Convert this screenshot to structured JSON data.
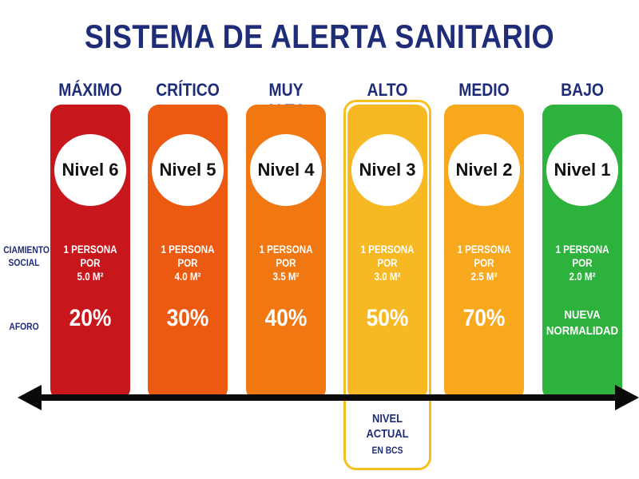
{
  "title": "SISTEMA DE ALERTA SANITARIO",
  "row_labels": {
    "distancing": "CIAMIENTO SOCIAL",
    "distancing_line1": "CIAMIENTO",
    "distancing_line2": "SOCIAL",
    "capacity": "AFORO"
  },
  "levels": [
    {
      "label": "MÁXIMO",
      "badge": "Nivel 6",
      "spacing_line1": "1 PERSONA POR",
      "spacing_line2": "5.0 M²",
      "capacity": "20%",
      "color": "#c8171c"
    },
    {
      "label": "CRÍTICO",
      "badge": "Nivel 5",
      "spacing_line1": "1 PERSONA POR",
      "spacing_line2": "4.0 M²",
      "capacity": "30%",
      "color": "#ec5a12"
    },
    {
      "label": "MUY ALTO",
      "badge": "Nivel 4",
      "spacing_line1": "1 PERSONA POR",
      "spacing_line2": "3.5 M²",
      "capacity": "40%",
      "color": "#f07712"
    },
    {
      "label": "ALTO",
      "badge": "Nivel 3",
      "spacing_line1": "1 PERSONA POR",
      "spacing_line2": "3.0 M²",
      "capacity": "50%",
      "color": "#f6b823"
    },
    {
      "label": "MEDIO",
      "badge": "Nivel 2",
      "spacing_line1": "1 PERSONA POR",
      "spacing_line2": "2.5 M²",
      "capacity": "70%",
      "color": "#f7a81d"
    },
    {
      "label": "BAJO",
      "badge": "Nivel 1",
      "spacing_line1": "1 PERSONA POR",
      "spacing_line2": "2.0 M²",
      "capacity_line1": "NUEVA",
      "capacity_line2": "NORMALIDAD",
      "color": "#2eb23e"
    }
  ],
  "current": {
    "line1": "NIVEL",
    "line2": "ACTUAL",
    "line3": "EN BCS",
    "highlight_color": "#f5bf22"
  },
  "colors": {
    "title": "#1f2c78",
    "axis": "#0a0a0a"
  }
}
